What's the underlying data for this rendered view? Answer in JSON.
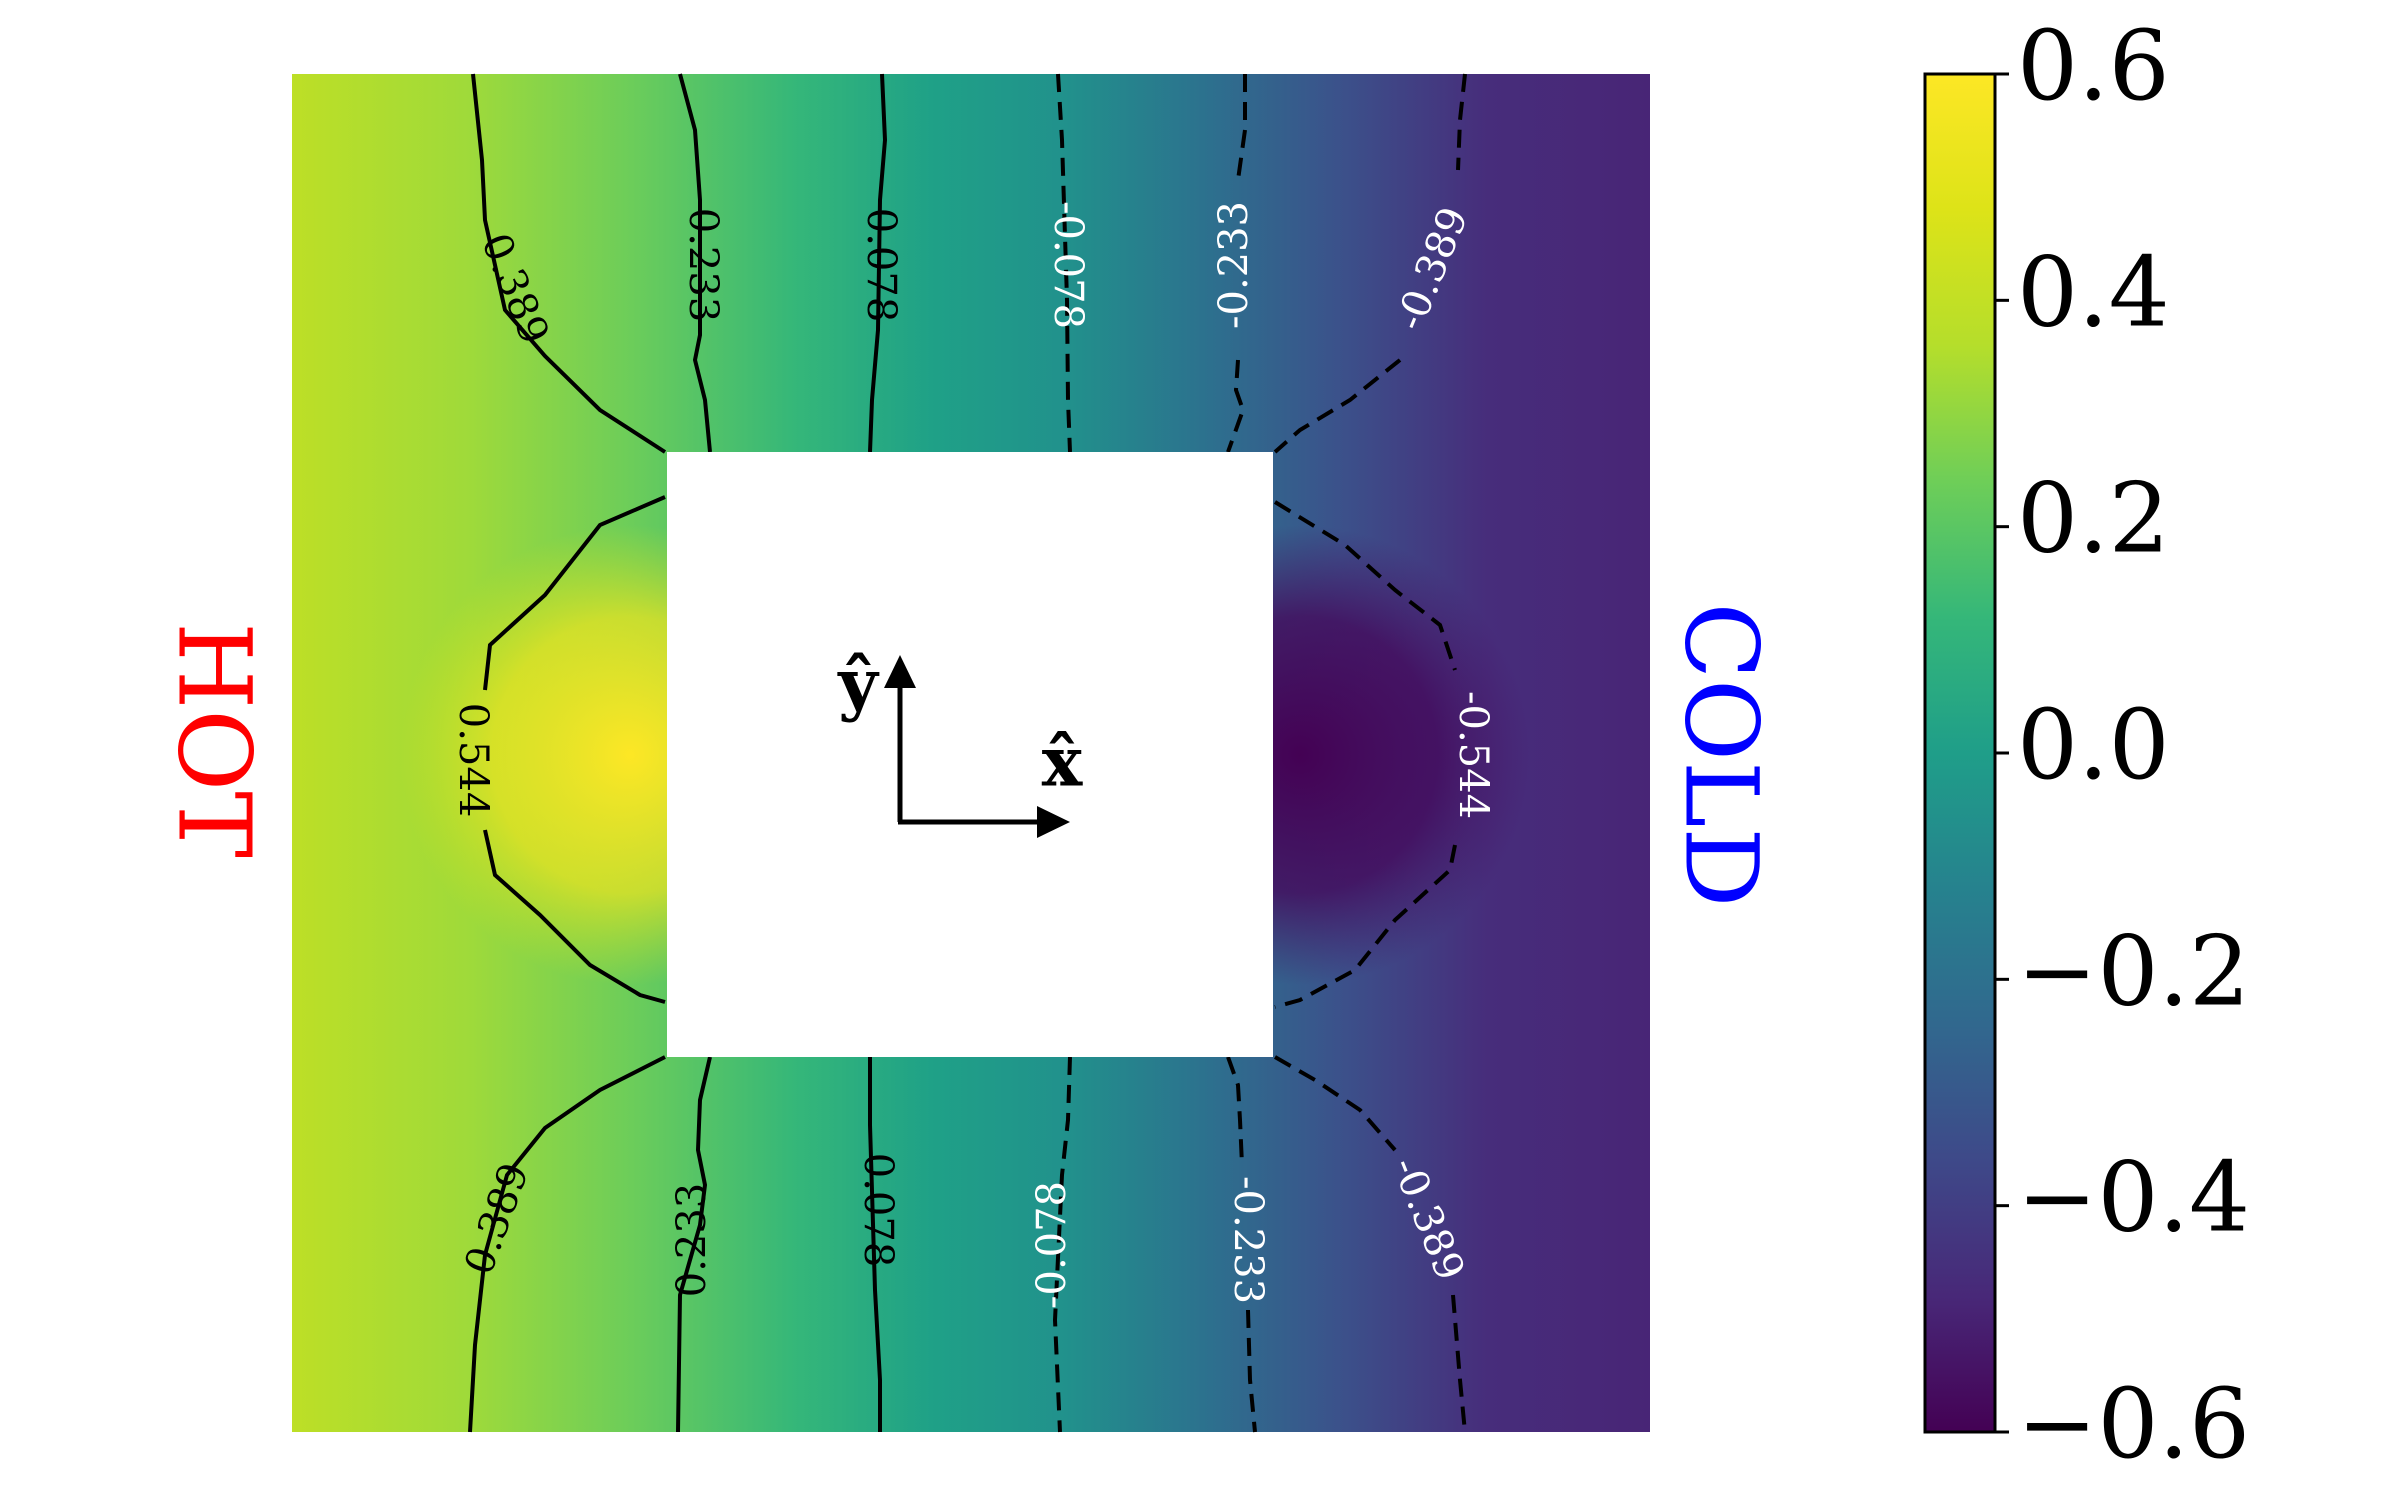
{
  "chart_data": {
    "type": "heatmap",
    "title": "",
    "xlabel": "",
    "ylabel": "",
    "colormap": "viridis",
    "colorbar": {
      "vmin": -0.6,
      "vmax": 0.6,
      "ticks": [
        0.6,
        0.4,
        0.2,
        0.0,
        -0.2,
        -0.4,
        -0.6
      ],
      "tick_labels": [
        "0.6",
        "0.4",
        "0.2",
        "0.0",
        "−0.2",
        "−0.4",
        "−0.6"
      ]
    },
    "contour_levels": [
      {
        "value": 0.544,
        "label": "0.544",
        "style": "solid"
      },
      {
        "value": 0.389,
        "label": "0.389",
        "style": "solid"
      },
      {
        "value": 0.233,
        "label": "0.233",
        "style": "solid"
      },
      {
        "value": 0.078,
        "label": "0.078",
        "style": "solid"
      },
      {
        "value": -0.078,
        "label": "-0.078",
        "style": "dashed"
      },
      {
        "value": -0.233,
        "label": "-0.233",
        "style": "dashed"
      },
      {
        "value": -0.389,
        "label": "-0.389",
        "style": "dashed"
      },
      {
        "value": -0.544,
        "label": "-0.544",
        "style": "dashed"
      }
    ],
    "annotations": {
      "left_side": {
        "text": "HOT",
        "color": "#ff0000"
      },
      "right_side": {
        "text": "COLD",
        "color": "#0000ff"
      },
      "axis_y_label": "ŷ",
      "axis_x_label": "x̂"
    },
    "obstacle": "square",
    "grid": false
  }
}
